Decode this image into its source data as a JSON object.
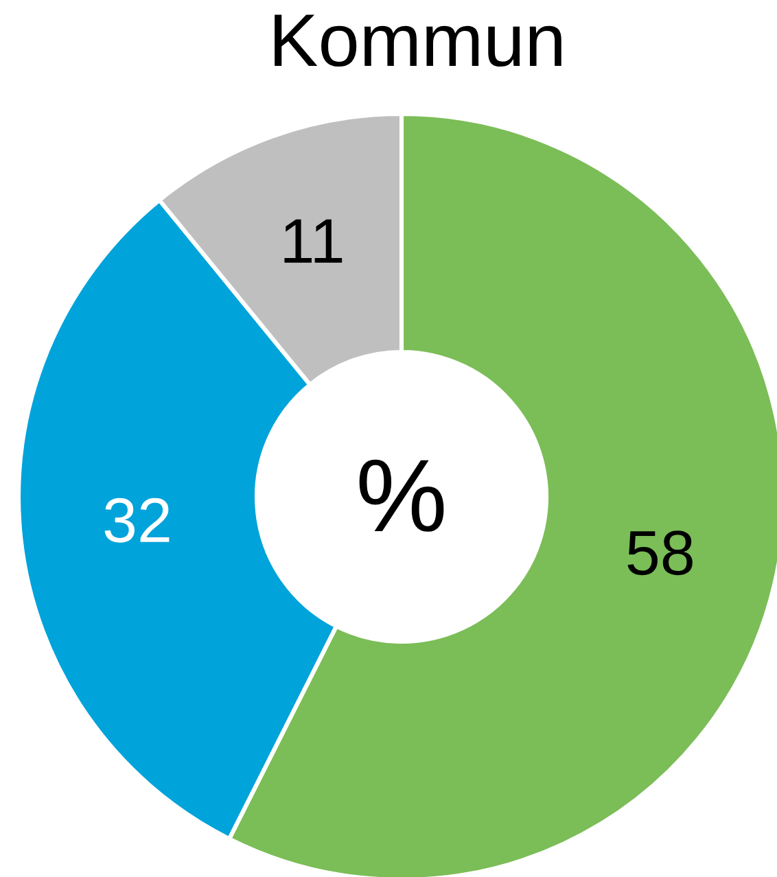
{
  "chart_data": {
    "type": "donut",
    "title": "Kommun",
    "categories": [
      null,
      null,
      null
    ],
    "values": [
      58,
      32,
      11
    ],
    "colors": [
      "#7bbd57",
      "#00a3da",
      "#bfbfbf"
    ],
    "data_labels": true,
    "annotations": [
      "%"
    ]
  }
}
